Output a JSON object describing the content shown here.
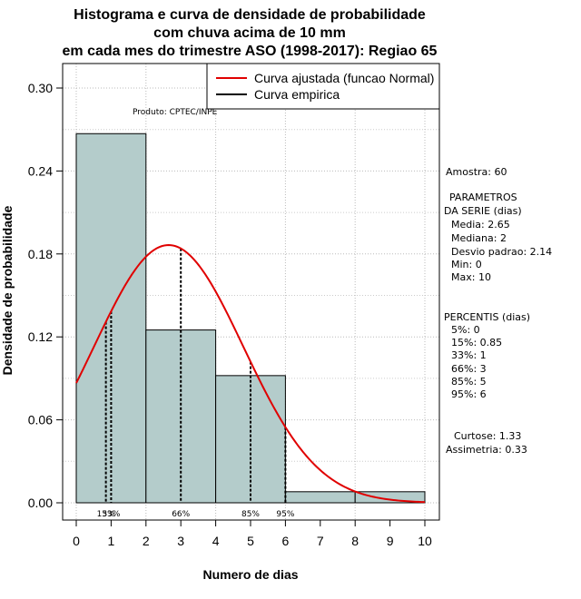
{
  "chart_data": {
    "type": "bar",
    "title_lines": [
      "Histograma e curva de densidade de probabilidade",
      "com chuva acima de 10 mm",
      "em cada mes do trimestre ASO (1998-2017): Regiao 65"
    ],
    "xlabel": "Numero de dias",
    "ylabel": "Densidade de probabilidade",
    "xlim": [
      0,
      10
    ],
    "ylim": [
      0,
      0.3
    ],
    "x_ticks": [
      "0",
      "1",
      "2",
      "3",
      "4",
      "5",
      "6",
      "7",
      "8",
      "9",
      "10"
    ],
    "y_ticks": [
      "0.00",
      "0.06",
      "0.12",
      "0.18",
      "0.24",
      "0.30"
    ],
    "bins": [
      {
        "from": 0,
        "to": 2,
        "density": 0.267
      },
      {
        "from": 2,
        "to": 4,
        "density": 0.125
      },
      {
        "from": 4,
        "to": 6,
        "density": 0.092
      },
      {
        "from": 6,
        "to": 8,
        "density": 0.008
      },
      {
        "from": 8,
        "to": 10,
        "density": 0.008
      }
    ],
    "bar_color": "#b4cccb",
    "normal_curve": {
      "mean": 2.65,
      "sd": 2.14,
      "color": "#e00000"
    },
    "legend": [
      "Curva ajustada (funcao Normal)",
      "Curva empirica"
    ],
    "source_label": "Produto: CPTEC/INPE",
    "percentile_lines": [
      {
        "label": "15%",
        "x": 0.85
      },
      {
        "label": "33%",
        "x": 1
      },
      {
        "label": "66%",
        "x": 3
      },
      {
        "label": "85%",
        "x": 5
      },
      {
        "label": "95%",
        "x": 6
      }
    ],
    "stats_panel": [
      "Amostra: 60",
      "PARAMETROS",
      "DA SERIE (dias)",
      "Media: 2.65",
      "Mediana: 2",
      "Desvio padrao: 2.14",
      "Min: 0",
      "Max: 10",
      "PERCENTIS (dias)",
      "5%: 0",
      "15%: 0.85",
      "33%: 1",
      "66%: 3",
      "85%: 5",
      "95%: 6",
      "Curtose: 1.33",
      "Assimetria: 0.33"
    ]
  }
}
